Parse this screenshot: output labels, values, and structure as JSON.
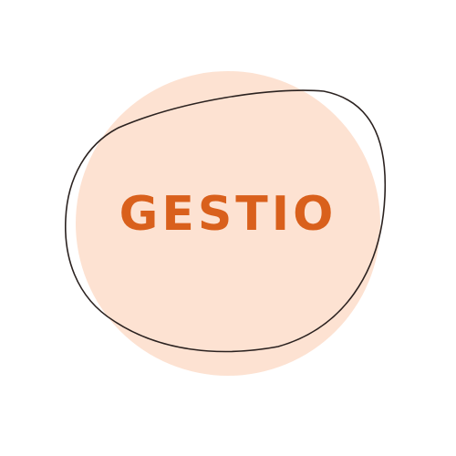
{
  "logo": {
    "brand_name": "GESTIO",
    "colors": {
      "background": "#ffffff",
      "circle_fill": "#fde2d2",
      "outline_stroke": "#2b2220",
      "text": "#d9601c"
    }
  }
}
